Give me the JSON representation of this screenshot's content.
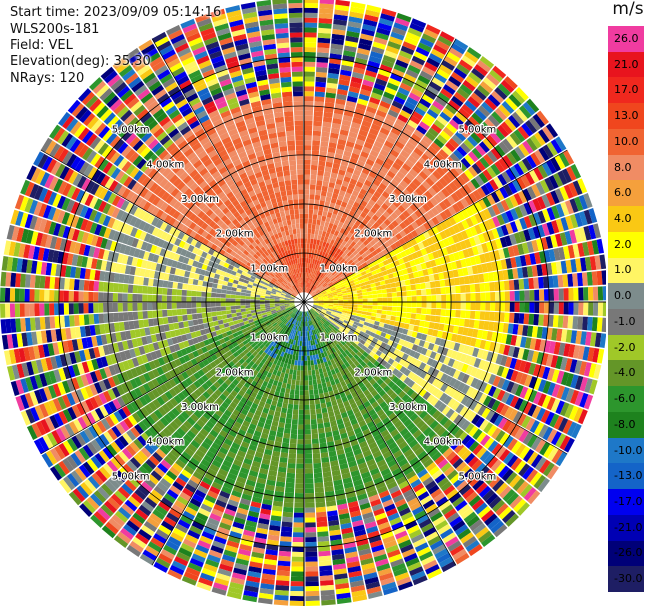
{
  "header": {
    "start_time": "Start time: 2023/09/09 05:14:16",
    "instrument": "WLS200s-181",
    "field": "Field: VEL",
    "elevation": "Elevation(deg): 35.30",
    "nrays": "NRays: 120"
  },
  "colorbar": {
    "unit": "m/s",
    "ticks": [
      "26.0",
      "21.0",
      "17.0",
      "13.0",
      "10.0",
      "8.0",
      "6.0",
      "4.0",
      "2.0",
      "1.0",
      "0.0",
      "-1.0",
      "-2.0",
      "-4.0",
      "-6.0",
      "-8.0",
      "-10.0",
      "-13.0",
      "-17.0",
      "-21.0",
      "-26.0",
      "-30.0"
    ],
    "colors": [
      "#f03ca0",
      "#e8141e",
      "#f0281e",
      "#f0461e",
      "#f06432",
      "#f08c64",
      "#f5a03c",
      "#fac814",
      "#ffff00",
      "#fff564",
      "#7d8c8c",
      "#787878",
      "#a0c828",
      "#649628",
      "#2d962d",
      "#1e821e",
      "#1e78c8",
      "#1464c8",
      "#0000f0",
      "#0000b4",
      "#000078",
      "#1e1e64"
    ]
  },
  "chart_data": {
    "type": "heatmap",
    "projection": "polar PPI",
    "field": "VEL",
    "unit": "m/s",
    "nrays": 120,
    "range_rings_km": [
      1.0,
      2.0,
      3.0,
      4.0,
      5.0
    ],
    "ring_labels": [
      "1.00km",
      "2.00km",
      "3.00km",
      "4.00km",
      "5.00km"
    ],
    "max_range_km": 6.2,
    "valid_range_km": 4.2,
    "pattern": {
      "description_sectors": [
        {
          "azimuth_from_deg": 300,
          "azimuth_to_deg": 60,
          "velocity_ms": 8.0
        },
        {
          "azimuth_from_deg": 60,
          "azimuth_to_deg": 105,
          "velocity_ms": 2.0
        },
        {
          "azimuth_from_deg": 105,
          "azimuth_to_deg": 130,
          "velocity_ms": 0.0
        },
        {
          "azimuth_from_deg": 130,
          "azimuth_to_deg": 250,
          "velocity_ms": -6.0
        },
        {
          "azimuth_from_deg": 250,
          "azimuth_to_deg": 275,
          "velocity_ms": -2.0
        },
        {
          "azimuth_from_deg": 275,
          "azimuth_to_deg": 300,
          "velocity_ms": 0.0
        }
      ],
      "near_core_velocity_ms": 10.0,
      "near_core_south_velocity_ms": -10.0
    },
    "ylim": [
      -30.0,
      26.0
    ],
    "grid": true
  }
}
